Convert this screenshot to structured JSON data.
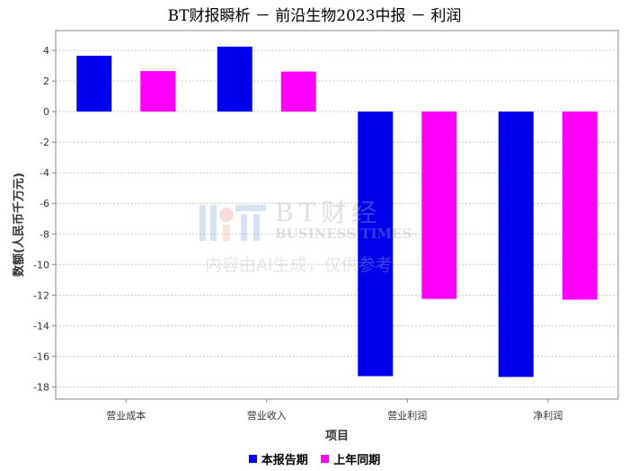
{
  "title": "BT财报瞬析 － 前沿生物2023中报 － 利润",
  "watermark": {
    "brand_cn": "BT财经",
    "brand_en": "BUSINESS TIMES",
    "note": "内容由AI生成，仅供参考"
  },
  "colors": {
    "current": "#0000ee",
    "previous": "#ff00ff"
  },
  "chart_data": {
    "type": "bar",
    "title": "BT财报瞬析 － 前沿生物2023中报 － 利润",
    "xlabel": "项目",
    "ylabel": "数额(人民币千万元)",
    "categories": [
      "营业成本",
      "营业收入",
      "营业利润",
      "净利润"
    ],
    "series": [
      {
        "name": "本报告期",
        "color": "#0000ee",
        "values": [
          3.65,
          4.25,
          -17.3,
          -17.35
        ]
      },
      {
        "name": "上年同期",
        "color": "#ff00ff",
        "values": [
          2.65,
          2.62,
          -12.25,
          -12.3
        ]
      }
    ],
    "ylim": [
      -18.8,
      5.3
    ],
    "yticks": [
      "4",
      "2",
      "0",
      "-2",
      "-4",
      "-6",
      "-8",
      "-10",
      "-12",
      "-14",
      "-16",
      "-18"
    ],
    "grid": true,
    "legend": "bottom"
  }
}
